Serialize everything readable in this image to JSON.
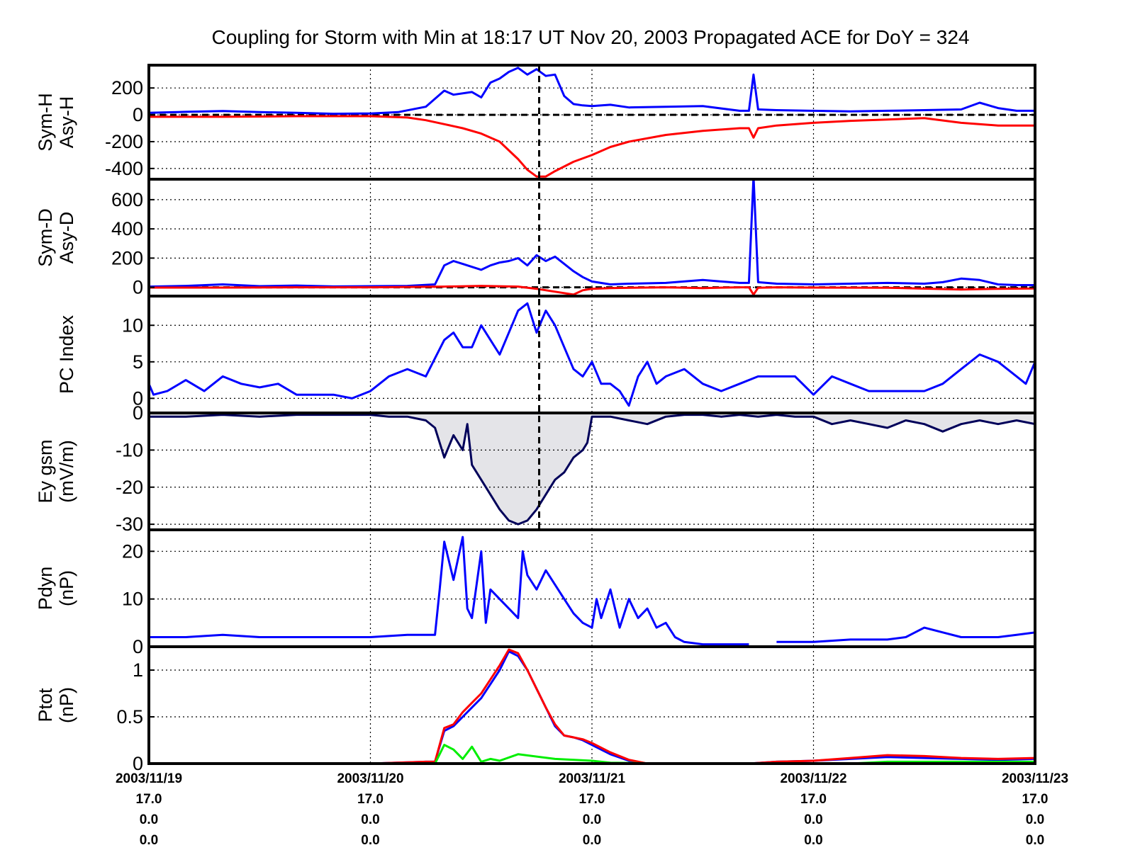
{
  "chart_data": {
    "type": "line",
    "title": "Coupling for Storm with Min at 18:17 UT Nov 20, 2003  Propagated ACE for DoY = 324",
    "x_range_hours": [
      0,
      96
    ],
    "x_major_ticks": [
      {
        "hour": 0,
        "lines": [
          "2003/11/19",
          "17.0",
          "0.0",
          "0.0"
        ]
      },
      {
        "hour": 24,
        "lines": [
          "2003/11/20",
          "17.0",
          "0.0",
          "0.0"
        ]
      },
      {
        "hour": 48,
        "lines": [
          "2003/11/21",
          "17.0",
          "0.0",
          "0.0"
        ]
      },
      {
        "hour": 72,
        "lines": [
          "2003/11/22",
          "17.0",
          "0.0",
          "0.0"
        ]
      },
      {
        "hour": 96,
        "lines": [
          "2003/11/23",
          "17.0",
          "0.0",
          "0.0"
        ]
      }
    ],
    "storm_min_hour": 42.28,
    "panels": [
      {
        "key": "symh",
        "ylabel_lines": [
          "Sym-H",
          "Asy-H"
        ],
        "ylim": [
          -480,
          370
        ],
        "yticks": [
          200,
          0,
          -200,
          -400
        ],
        "zero_line": true,
        "series": [
          {
            "color": "#0000ff",
            "x": [
              0,
              4,
              8,
              12,
              16,
              20,
              24,
              27,
              30,
              32,
              33,
              35,
              36,
              37,
              38,
              39,
              40,
              41,
              42,
              43,
              44,
              45,
              46,
              47,
              48,
              50,
              52,
              56,
              60,
              64,
              65,
              65.5,
              66,
              68,
              72,
              76,
              80,
              84,
              88,
              90,
              92,
              94,
              96
            ],
            "y": [
              15,
              22,
              28,
              20,
              15,
              8,
              10,
              20,
              60,
              180,
              150,
              170,
              130,
              240,
              270,
              320,
              350,
              300,
              340,
              290,
              300,
              140,
              80,
              70,
              65,
              75,
              55,
              60,
              65,
              30,
              30,
              300,
              40,
              35,
              30,
              25,
              30,
              35,
              40,
              90,
              50,
              30,
              30
            ]
          },
          {
            "color": "#ff0000",
            "x": [
              0,
              8,
              16,
              24,
              28,
              30,
              32,
              34,
              36,
              38,
              40,
              41,
              42,
              43,
              44,
              46,
              48,
              50,
              52,
              56,
              60,
              64,
              65,
              65.5,
              66,
              68,
              72,
              76,
              80,
              84,
              88,
              92,
              96
            ],
            "y": [
              -15,
              -15,
              -10,
              -10,
              -20,
              -40,
              -70,
              -100,
              -140,
              -200,
              -330,
              -410,
              -460,
              -460,
              -420,
              -350,
              -300,
              -240,
              -200,
              -150,
              -120,
              -100,
              -100,
              -170,
              -100,
              -80,
              -60,
              -45,
              -35,
              -25,
              -60,
              -80,
              -80
            ]
          }
        ]
      },
      {
        "key": "symd",
        "ylabel_lines": [
          "Sym-D",
          "Asy-D"
        ],
        "ylim": [
          -60,
          740
        ],
        "yticks": [
          600,
          400,
          200,
          0
        ],
        "zero_line": true,
        "series": [
          {
            "color": "#0000ff",
            "x": [
              0,
              4,
              8,
              12,
              16,
              20,
              24,
              28,
              31,
              32,
              33,
              34,
              36,
              37,
              38,
              39,
              40,
              41,
              42,
              43,
              44,
              45,
              46,
              47,
              48,
              50,
              52,
              56,
              60,
              64,
              65,
              65.5,
              66,
              68,
              72,
              76,
              80,
              84,
              86,
              88,
              90,
              92,
              94,
              96
            ],
            "y": [
              5,
              10,
              20,
              8,
              12,
              6,
              8,
              10,
              20,
              150,
              180,
              160,
              120,
              150,
              170,
              180,
              200,
              150,
              220,
              180,
              210,
              160,
              110,
              70,
              40,
              20,
              25,
              30,
              50,
              30,
              30,
              760,
              35,
              25,
              20,
              25,
              30,
              25,
              35,
              60,
              50,
              20,
              15,
              15
            ]
          },
          {
            "color": "#ff0000",
            "x": [
              0,
              8,
              16,
              24,
              32,
              36,
              40,
              42,
              44,
              46,
              47,
              48,
              50,
              56,
              60,
              64,
              65,
              65.5,
              66,
              68,
              72,
              80,
              88,
              92,
              96
            ],
            "y": [
              -2,
              -2,
              0,
              0,
              5,
              10,
              5,
              -10,
              -30,
              -50,
              -20,
              -10,
              -5,
              0,
              -5,
              0,
              0,
              -50,
              -3,
              0,
              -2,
              -3,
              -15,
              -10,
              -8
            ]
          }
        ]
      },
      {
        "key": "pc",
        "ylabel_lines": [
          "PC Index"
        ],
        "ylim": [
          -2,
          14
        ],
        "yticks": [
          10,
          5,
          0
        ],
        "zero_line": false,
        "series": [
          {
            "color": "#0000ff",
            "x": [
              0,
              0.5,
              2,
              4,
              6,
              8,
              10,
              12,
              14,
              16,
              18,
              20,
              22,
              24,
              26,
              28,
              30,
              32,
              33,
              34,
              35,
              36,
              37,
              38,
              39,
              40,
              41,
              42,
              43,
              44,
              45,
              46,
              47,
              48,
              49,
              50,
              51,
              52,
              53,
              54,
              55,
              56,
              58,
              60,
              62,
              64,
              66,
              68,
              70,
              72,
              74,
              76,
              78,
              80,
              82,
              84,
              86,
              88,
              90,
              92,
              94,
              95,
              96
            ],
            "y": [
              2,
              0.5,
              1,
              2.5,
              1,
              3,
              2,
              1.5,
              2,
              0.5,
              0.5,
              0.5,
              0,
              1,
              3,
              4,
              3,
              8,
              9,
              7,
              7,
              10,
              8,
              6,
              9,
              12,
              13,
              9,
              12,
              10,
              7,
              4,
              3,
              5,
              2,
              2,
              1,
              -1,
              3,
              5,
              2,
              3,
              4,
              2,
              1,
              2,
              3,
              3,
              3,
              0.5,
              3,
              2,
              1,
              1,
              1,
              1,
              2,
              4,
              6,
              5,
              3,
              2,
              5
            ]
          }
        ]
      },
      {
        "key": "ey",
        "ylabel_lines": [
          "Ey gsm",
          "(mV/m)"
        ],
        "ylim": [
          -31.5,
          0
        ],
        "yticks": [
          0,
          -10,
          -20,
          -30
        ],
        "zero_line": false,
        "fill_color": "#e4e4e8",
        "series": [
          {
            "color": "#00005a",
            "x": [
              0,
              4,
              8,
              12,
              16,
              20,
              24,
              26,
              28,
              30,
              31,
              32,
              33,
              34,
              34.5,
              35,
              36,
              37,
              38,
              39,
              40,
              41,
              42,
              43,
              44,
              45,
              46,
              47,
              47.5,
              48,
              50,
              52,
              54,
              56,
              58,
              60,
              62,
              64,
              66,
              68,
              70,
              72,
              74,
              76,
              78,
              80,
              82,
              84,
              86,
              88,
              90,
              92,
              94,
              96
            ],
            "y": [
              -1,
              -1,
              -0.5,
              -1,
              -0.5,
              -0.5,
              -0.5,
              -1,
              -1,
              -2,
              -4,
              -12,
              -6,
              -10,
              -3,
              -14,
              -18,
              -22,
              -26,
              -29,
              -30,
              -29,
              -26,
              -22,
              -18,
              -16,
              -12,
              -10,
              -8,
              -1,
              -1,
              -2,
              -3,
              -1,
              -0.5,
              -0.5,
              -1,
              -0.5,
              -1,
              -0.5,
              -1,
              -1,
              -3,
              -2,
              -3,
              -4,
              -2,
              -3,
              -5,
              -3,
              -2,
              -3,
              -2,
              -3
            ]
          },
          {
            "color": "#ff0000",
            "x": [
              65,
              68
            ],
            "y": [
              0,
              0
            ]
          }
        ]
      },
      {
        "key": "pdyn",
        "ylabel_lines": [
          "Pdyn",
          "(nP)"
        ],
        "ylim": [
          0,
          24.5
        ],
        "yticks": [
          20,
          10,
          0
        ],
        "zero_line": false,
        "series": [
          {
            "color": "#0000ff",
            "x": [
              0,
              4,
              8,
              12,
              16,
              20,
              24,
              28,
              31,
              31.5,
              32,
              33,
              34,
              34.5,
              35,
              36,
              36.5,
              37,
              38,
              39,
              40,
              40.5,
              41,
              42,
              43,
              44,
              45,
              46,
              47,
              48,
              48.5,
              49,
              50,
              51,
              52,
              53,
              54,
              55,
              56,
              57,
              58,
              60,
              62,
              64,
              65
            ],
            "y": [
              2,
              2,
              2.5,
              2,
              2,
              2,
              2,
              2.5,
              2.5,
              12,
              22,
              14,
              23,
              8,
              6,
              20,
              5,
              12,
              10,
              8,
              6,
              20,
              15,
              12,
              16,
              13,
              10,
              7,
              5,
              4,
              10,
              6,
              12,
              4,
              10,
              6,
              8,
              4,
              5,
              2,
              1,
              0.5,
              0.5,
              0.5,
              0.5
            ]
          },
          {
            "color": "#0000ff",
            "x": [
              68,
              72,
              76,
              80,
              82,
              83,
              84,
              86,
              88,
              90,
              92,
              94,
              96
            ],
            "y": [
              1,
              1,
              1.5,
              1.5,
              2,
              3,
              4,
              3,
              2,
              2,
              2,
              2.5,
              3
            ]
          }
        ]
      },
      {
        "key": "ptot",
        "ylabel_lines": [
          "Ptot",
          "(nP)"
        ],
        "ylim": [
          0,
          1.25
        ],
        "yticks": [
          1,
          0.5,
          0
        ],
        "zero_line": false,
        "series": [
          {
            "color": "#0000ff",
            "x": [
              0,
              8,
              16,
              24,
              30,
              31,
              32,
              33,
              34,
              35,
              36,
              37,
              38,
              39,
              40,
              41,
              42,
              43,
              44,
              45,
              46,
              47,
              48,
              50,
              52,
              54,
              56,
              60,
              64,
              65,
              68,
              72,
              76,
              80,
              84,
              88,
              92,
              96
            ],
            "y": [
              0,
              0,
              0,
              0,
              0.02,
              0.02,
              0.35,
              0.4,
              0.5,
              0.6,
              0.7,
              0.85,
              1.0,
              1.2,
              1.15,
              1.0,
              0.8,
              0.6,
              0.4,
              0.3,
              0.28,
              0.25,
              0.2,
              0.1,
              0.03,
              0,
              0,
              0,
              0,
              0,
              0.02,
              0.03,
              0.05,
              0.07,
              0.06,
              0.05,
              0.04,
              0.05
            ]
          },
          {
            "color": "#ff0000",
            "x": [
              0,
              8,
              16,
              24,
              30,
              31,
              32,
              33,
              34,
              35,
              36,
              37,
              38,
              39,
              40,
              41,
              42,
              43,
              44,
              45,
              46,
              47,
              48,
              50,
              52,
              54,
              56,
              60,
              64,
              65,
              68,
              72,
              76,
              80,
              84,
              88,
              92,
              96
            ],
            "y": [
              0,
              0,
              0,
              0,
              0.02,
              0.02,
              0.38,
              0.42,
              0.55,
              0.65,
              0.75,
              0.9,
              1.05,
              1.22,
              1.18,
              1.0,
              0.8,
              0.6,
              0.42,
              0.3,
              0.28,
              0.26,
              0.22,
              0.12,
              0.04,
              0,
              0,
              0,
              0,
              0,
              0.02,
              0.03,
              0.06,
              0.09,
              0.08,
              0.06,
              0.05,
              0.06
            ]
          },
          {
            "color": "#00ee00",
            "x": [
              0,
              16,
              24,
              31,
              32,
              33,
              34,
              35,
              36,
              37,
              38,
              40,
              44,
              48,
              50,
              56,
              64,
              68,
              76,
              80,
              88,
              96
            ],
            "y": [
              0,
              0,
              0,
              0,
              0.2,
              0.15,
              0.05,
              0.18,
              0.02,
              0.05,
              0.03,
              0.1,
              0.05,
              0.03,
              0.01,
              0,
              0,
              0,
              0,
              0.02,
              0.02,
              0.02
            ]
          }
        ]
      }
    ]
  }
}
